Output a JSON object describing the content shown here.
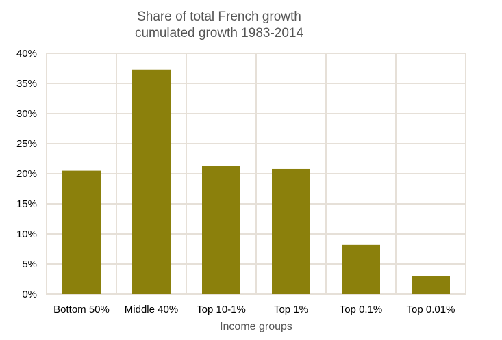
{
  "chart_data": {
    "type": "bar",
    "title": "Share of total French growth",
    "subtitle": "cumulated growth 1983-2014",
    "xlabel": "Income groups",
    "ylabel": "",
    "categories": [
      "Bottom 50%",
      "Middle 40%",
      "Top 10-1%",
      "Top 1%",
      "Top 0.1%",
      "Top 0.01%"
    ],
    "values": [
      20.5,
      37.3,
      21.3,
      20.8,
      8.2,
      3.0
    ],
    "ylim": [
      0,
      40
    ],
    "yticks": [
      "0%",
      "5%",
      "10%",
      "15%",
      "20%",
      "25%",
      "30%",
      "35%",
      "40%"
    ],
    "grid": true,
    "legend": "none",
    "colors": {
      "bar": "#8b800c",
      "grid": "#e6e0d8"
    }
  }
}
